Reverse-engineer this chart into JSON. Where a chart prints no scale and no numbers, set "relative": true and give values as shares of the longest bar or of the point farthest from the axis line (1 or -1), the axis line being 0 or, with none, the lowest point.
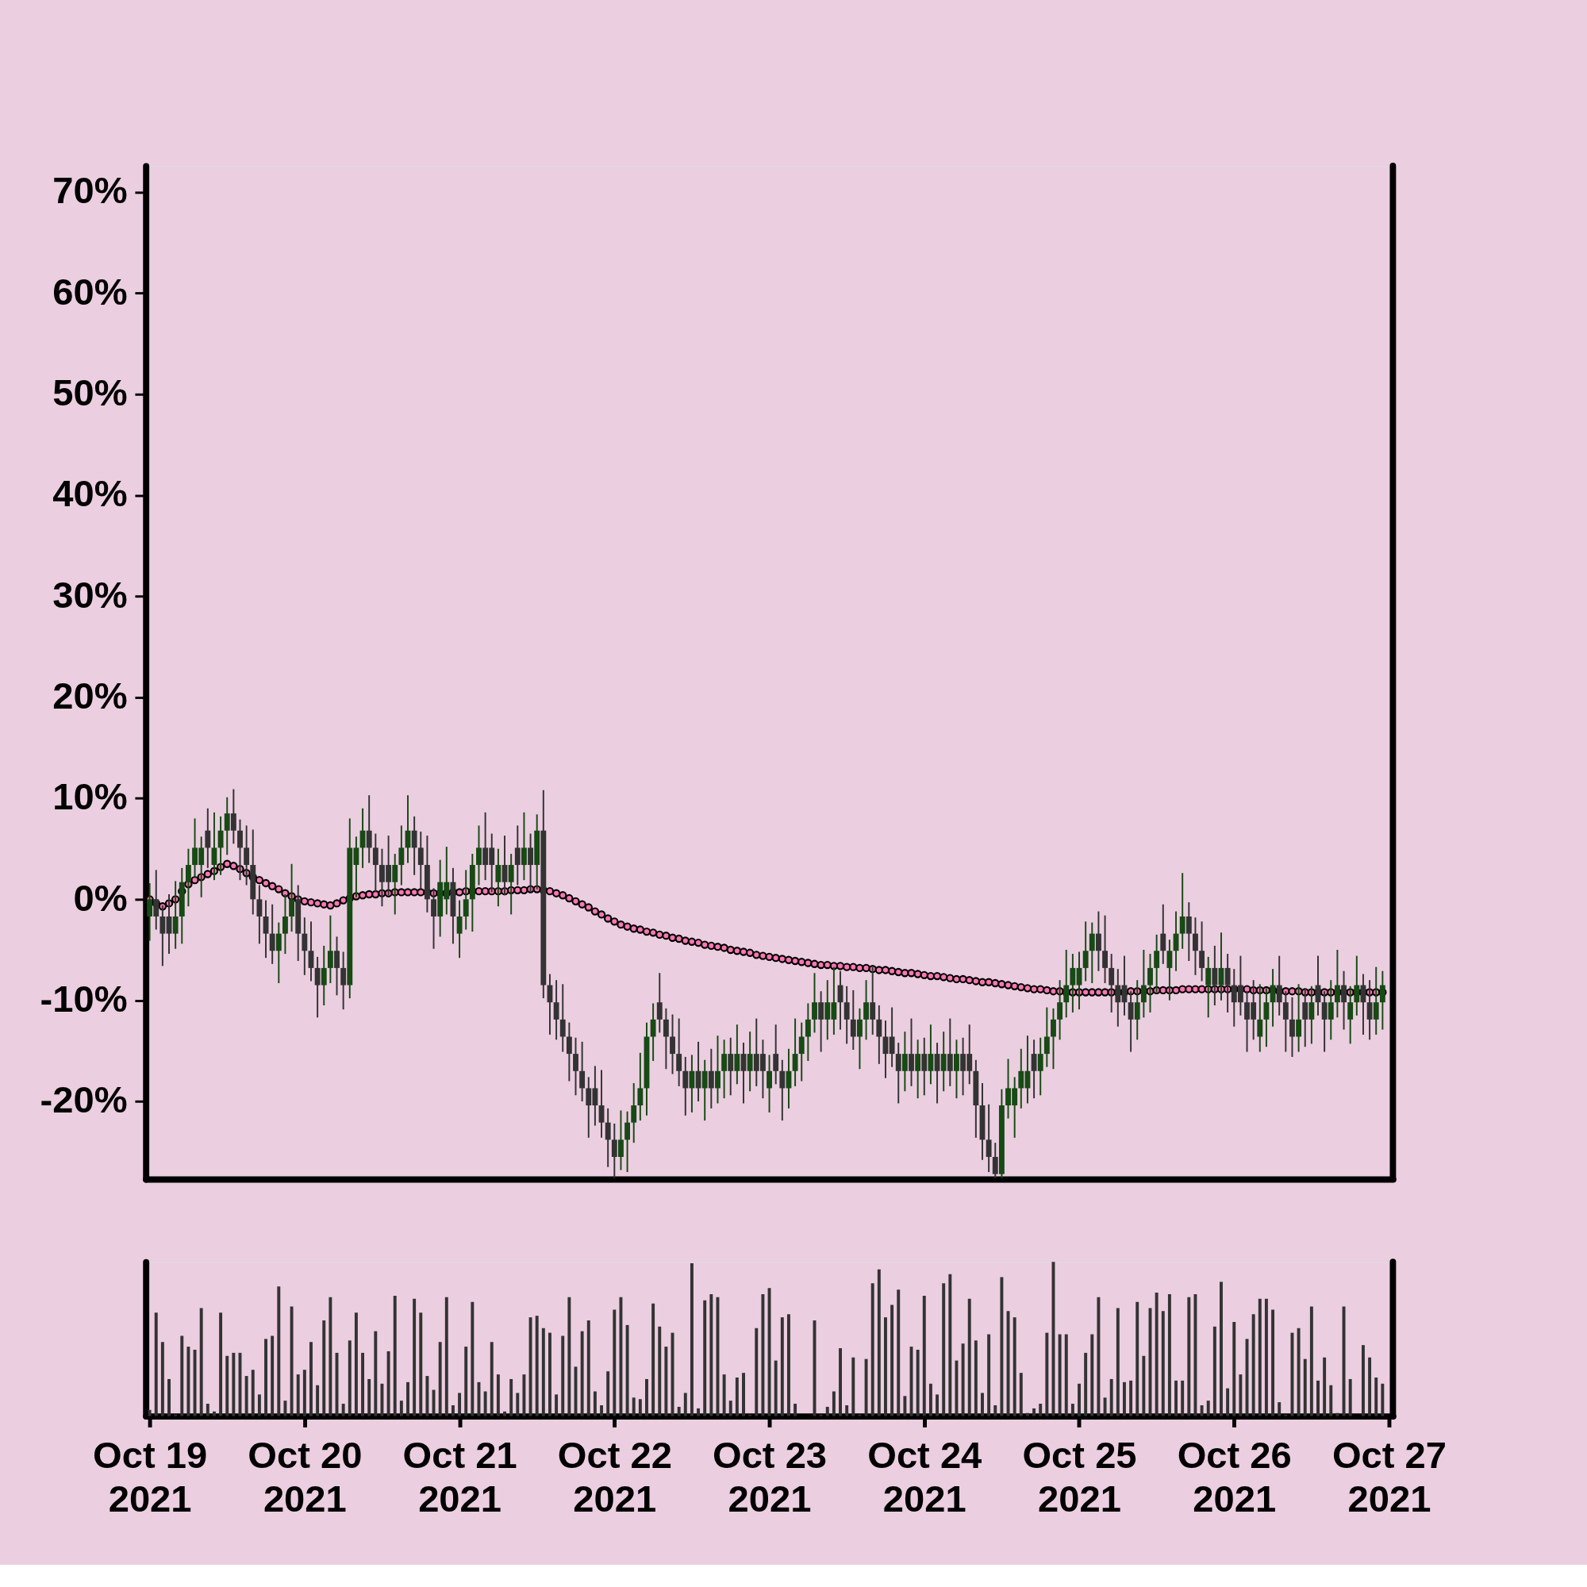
{
  "chart_data": [
    {
      "type": "candlestick",
      "colors": [
        "#174a14",
        "#333333",
        "#333333",
        "#333333",
        "#174a14",
        "#174a14",
        "#174a14",
        "#174a14",
        "#174a14",
        "#333333",
        "#174a14",
        "#174a14",
        "#174a14",
        "#333333",
        "#333333",
        "#333333",
        "#333333",
        "#333333",
        "#333333",
        "#333333",
        "#174a14",
        "#174a14",
        "#174a14",
        "#333333",
        "#333333",
        "#333333",
        "#333333",
        "#174a14",
        "#174a14",
        "#333333",
        "#333333",
        "#174a14",
        "#174a14",
        "#174a14",
        "#333333",
        "#333333",
        "#333333",
        "#333333",
        "#174a14",
        "#174a14",
        "#174a14",
        "#333333",
        "#333333",
        "#333333",
        "#333333",
        "#174a14",
        "#174a14",
        "#333333",
        "#174a14",
        "#174a14",
        "#174a14",
        "#174a14",
        "#333333",
        "#333333",
        "#174a14",
        "#333333",
        "#174a14",
        "#333333",
        "#174a14",
        "#333333",
        "#174a14",
        "#333333",
        "#333333",
        "#333333",
        "#333333",
        "#333333",
        "#333333",
        "#333333",
        "#333333",
        "#333333",
        "#333333",
        "#333333",
        "#333333",
        "#174a14",
        "#174a14",
        "#174a14",
        "#174a14",
        "#174a14",
        "#174a14",
        "#333333",
        "#333333",
        "#333333",
        "#333333",
        "#333333",
        "#174a14",
        "#333333",
        "#174a14",
        "#333333",
        "#174a14",
        "#174a14",
        "#333333",
        "#174a14",
        "#333333",
        "#174a14",
        "#333333",
        "#333333",
        "#174a14",
        "#333333",
        "#333333",
        "#174a14",
        "#174a14",
        "#174a14",
        "#174a14",
        "#174a14",
        "#333333",
        "#174a14",
        "#174a14",
        "#333333",
        "#333333",
        "#333333",
        "#174a14",
        "#174a14",
        "#333333",
        "#333333",
        "#333333",
        "#333333",
        "#333333",
        "#174a14",
        "#333333",
        "#174a14",
        "#333333",
        "#174a14",
        "#333333",
        "#174a14",
        "#333333",
        "#174a14",
        "#333333",
        "#333333",
        "#333333",
        "#333333",
        "#333333",
        "#333333",
        "#174a14",
        "#174a14",
        "#174a14",
        "#174a14",
        "#174a14",
        "#333333",
        "#174a14",
        "#174a14",
        "#174a14",
        "#174a14",
        "#174a14",
        "#174a14",
        "#174a14",
        "#174a14",
        "#174a14",
        "#333333",
        "#333333",
        "#333333",
        "#333333",
        "#333333",
        "#333333",
        "#174a14",
        "#174a14",
        "#174a14",
        "#174a14",
        "#333333",
        "#174a14",
        "#174a14",
        "#174a14",
        "#333333",
        "#333333",
        "#333333",
        "#174a14",
        "#333333",
        "#174a14",
        "#333333",
        "#333333",
        "#333333",
        "#333333",
        "#333333",
        "#174a14",
        "#174a14",
        "#174a14",
        "#333333",
        "#333333",
        "#333333",
        "#174a14",
        "#333333",
        "#174a14",
        "#333333",
        "#333333",
        "#174a14",
        "#174a14",
        "#333333",
        "#174a14",
        "#174a14",
        "#333333",
        "#333333",
        "#174a14",
        "#174a14"
      ],
      "xlim": [
        "2021-10-19T00:00",
        "2021-10-27T00:00"
      ],
      "xticks": [
        {
          "value": "2021-10-19T00:00",
          "label": null
        },
        {
          "value": "2021-10-27T00:00",
          "label": null
        }
      ],
      "ylim": [
        -27.7,
        72.6
      ],
      "yticks": [
        {
          "value": -20,
          "label": "-20%"
        },
        {
          "value": -10,
          "label": "-10%"
        },
        {
          "value": 0,
          "label": "0%"
        },
        {
          "value": 10,
          "label": "10%"
        },
        {
          "value": 20,
          "label": "20%"
        },
        {
          "value": 30,
          "label": "30%"
        },
        {
          "value": 40,
          "label": "40%"
        },
        {
          "value": 50,
          "label": "50%"
        },
        {
          "value": 60,
          "label": "60%"
        },
        {
          "value": 70,
          "label": "70%"
        }
      ],
      "tick_labels": "y",
      "x": [
        "2021-10-19T00:00",
        "2021-10-19T01:00",
        "2021-10-19T02:00",
        "2021-10-19T03:00",
        "2021-10-19T04:00",
        "2021-10-19T05:00",
        "2021-10-19T06:00",
        "2021-10-19T07:00",
        "2021-10-19T08:00",
        "2021-10-19T09:00",
        "2021-10-19T10:00",
        "2021-10-19T11:00",
        "2021-10-19T12:00",
        "2021-10-19T13:00",
        "2021-10-19T14:00",
        "2021-10-19T15:00",
        "2021-10-19T16:00",
        "2021-10-19T17:00",
        "2021-10-19T18:00",
        "2021-10-19T19:00",
        "2021-10-19T20:00",
        "2021-10-19T21:00",
        "2021-10-19T22:00",
        "2021-10-19T23:00",
        "2021-10-20T00:00",
        "2021-10-20T01:00",
        "2021-10-20T02:00",
        "2021-10-20T03:00",
        "2021-10-20T04:00",
        "2021-10-20T05:00",
        "2021-10-20T06:00",
        "2021-10-20T07:00",
        "2021-10-20T08:00",
        "2021-10-20T09:00",
        "2021-10-20T10:00",
        "2021-10-20T11:00",
        "2021-10-20T12:00",
        "2021-10-20T13:00",
        "2021-10-20T14:00",
        "2021-10-20T15:00",
        "2021-10-20T16:00",
        "2021-10-20T17:00",
        "2021-10-20T18:00",
        "2021-10-20T19:00",
        "2021-10-20T20:00",
        "2021-10-20T21:00",
        "2021-10-20T22:00",
        "2021-10-20T23:00",
        "2021-10-21T00:00",
        "2021-10-21T01:00",
        "2021-10-21T02:00",
        "2021-10-21T03:00",
        "2021-10-21T04:00",
        "2021-10-21T05:00",
        "2021-10-21T06:00",
        "2021-10-21T07:00",
        "2021-10-21T08:00",
        "2021-10-21T09:00",
        "2021-10-21T10:00",
        "2021-10-21T11:00",
        "2021-10-21T12:00",
        "2021-10-21T13:00",
        "2021-10-21T14:00",
        "2021-10-21T15:00",
        "2021-10-21T16:00",
        "2021-10-21T17:00",
        "2021-10-21T18:00",
        "2021-10-21T19:00",
        "2021-10-21T20:00",
        "2021-10-21T21:00",
        "2021-10-21T22:00",
        "2021-10-21T23:00",
        "2021-10-22T00:00",
        "2021-10-22T01:00",
        "2021-10-22T02:00",
        "2021-10-22T03:00",
        "2021-10-22T04:00",
        "2021-10-22T05:00",
        "2021-10-22T06:00",
        "2021-10-22T07:00",
        "2021-10-22T08:00",
        "2021-10-22T09:00",
        "2021-10-22T10:00",
        "2021-10-22T11:00",
        "2021-10-22T12:00",
        "2021-10-22T13:00",
        "2021-10-22T14:00",
        "2021-10-22T15:00",
        "2021-10-22T16:00",
        "2021-10-22T17:00",
        "2021-10-22T18:00",
        "2021-10-22T19:00",
        "2021-10-22T20:00",
        "2021-10-22T21:00",
        "2021-10-22T22:00",
        "2021-10-22T23:00",
        "2021-10-23T00:00",
        "2021-10-23T01:00",
        "2021-10-23T02:00",
        "2021-10-23T03:00",
        "2021-10-23T04:00",
        "2021-10-23T05:00",
        "2021-10-23T06:00",
        "2021-10-23T07:00",
        "2021-10-23T08:00",
        "2021-10-23T09:00",
        "2021-10-23T10:00",
        "2021-10-23T11:00",
        "2021-10-23T12:00",
        "2021-10-23T13:00",
        "2021-10-23T14:00",
        "2021-10-23T15:00",
        "2021-10-23T16:00",
        "2021-10-23T17:00",
        "2021-10-23T18:00",
        "2021-10-23T19:00",
        "2021-10-23T20:00",
        "2021-10-23T21:00",
        "2021-10-23T22:00",
        "2021-10-23T23:00",
        "2021-10-24T00:00",
        "2021-10-24T01:00",
        "2021-10-24T02:00",
        "2021-10-24T03:00",
        "2021-10-24T04:00",
        "2021-10-24T05:00",
        "2021-10-24T06:00",
        "2021-10-24T07:00",
        "2021-10-24T08:00",
        "2021-10-24T09:00",
        "2021-10-24T10:00",
        "2021-10-24T11:00",
        "2021-10-24T12:00",
        "2021-10-24T13:00",
        "2021-10-24T14:00",
        "2021-10-24T15:00",
        "2021-10-24T16:00",
        "2021-10-24T17:00",
        "2021-10-24T18:00",
        "2021-10-24T19:00",
        "2021-10-24T20:00",
        "2021-10-24T21:00",
        "2021-10-24T22:00",
        "2021-10-24T23:00",
        "2021-10-25T00:00",
        "2021-10-25T01:00",
        "2021-10-25T02:00",
        "2021-10-25T03:00",
        "2021-10-25T04:00",
        "2021-10-25T05:00",
        "2021-10-25T06:00",
        "2021-10-25T07:00",
        "2021-10-25T08:00",
        "2021-10-25T09:00",
        "2021-10-25T10:00",
        "2021-10-25T11:00",
        "2021-10-25T12:00",
        "2021-10-25T13:00",
        "2021-10-25T14:00",
        "2021-10-25T15:00",
        "2021-10-25T16:00",
        "2021-10-25T17:00",
        "2021-10-25T18:00",
        "2021-10-25T19:00",
        "2021-10-25T20:00",
        "2021-10-25T21:00",
        "2021-10-25T22:00",
        "2021-10-25T23:00",
        "2021-10-26T00:00",
        "2021-10-26T01:00",
        "2021-10-26T02:00",
        "2021-10-26T03:00",
        "2021-10-26T04:00",
        "2021-10-26T05:00",
        "2021-10-26T06:00",
        "2021-10-26T07:00",
        "2021-10-26T08:00",
        "2021-10-26T09:00",
        "2021-10-26T10:00",
        "2021-10-26T11:00",
        "2021-10-26T12:00",
        "2021-10-26T13:00",
        "2021-10-26T14:00",
        "2021-10-26T15:00",
        "2021-10-26T16:00",
        "2021-10-26T17:00",
        "2021-10-26T18:00",
        "2021-10-26T19:00",
        "2021-10-26T20:00",
        "2021-10-26T21:00",
        "2021-10-26T22:00",
        "2021-10-26T23:00"
      ],
      "ohlc": [
        [
          -1.7,
          1.6,
          -4.1,
          0
        ],
        [
          0,
          2.9,
          -3.0,
          -1.7
        ],
        [
          -1.7,
          -0.6,
          -6.6,
          -3.4
        ],
        [
          -1.7,
          0.5,
          -5.4,
          -3.4
        ],
        [
          -3.4,
          1.8,
          -4.9,
          -1.7
        ],
        [
          -1.7,
          3.1,
          -4.4,
          1.7
        ],
        [
          1.7,
          5.0,
          -0.7,
          3.4
        ],
        [
          3.4,
          8.0,
          2.1,
          5.1
        ],
        [
          3.4,
          6.2,
          0.2,
          5.1
        ],
        [
          6.8,
          9.0,
          3.1,
          5.1
        ],
        [
          3.4,
          8.6,
          1.9,
          5.1
        ],
        [
          5.1,
          8.2,
          2.4,
          6.8
        ],
        [
          6.8,
          10.1,
          4.4,
          8.5
        ],
        [
          8.5,
          10.9,
          5.5,
          6.8
        ],
        [
          6.8,
          7.9,
          1.9,
          5.1
        ],
        [
          5.1,
          7.3,
          1.4,
          3.4
        ],
        [
          3.4,
          6.9,
          -1.5,
          0
        ],
        [
          0,
          1.4,
          -4.4,
          -1.7
        ],
        [
          -1.7,
          -0.1,
          -5.8,
          -3.4
        ],
        [
          -3.4,
          -0.5,
          -6.4,
          -5.1
        ],
        [
          -5.1,
          -2.3,
          -8.3,
          -3.4
        ],
        [
          -3.4,
          0.5,
          -5.4,
          -1.7
        ],
        [
          -1.7,
          3.5,
          -3.2,
          0
        ],
        [
          0,
          1.4,
          -6.1,
          -3.4
        ],
        [
          -3.4,
          -1.8,
          -7.5,
          -5.1
        ],
        [
          -5.1,
          -2.2,
          -8.1,
          -6.8
        ],
        [
          -6.8,
          -5.7,
          -11.7,
          -8.5
        ],
        [
          -8.5,
          -4.6,
          -10.5,
          -6.8
        ],
        [
          -6.8,
          -1.6,
          -8.3,
          -5.1
        ],
        [
          -5.1,
          -3.7,
          -9.5,
          -6.8
        ],
        [
          -6.8,
          -5.2,
          -10.9,
          -8.5
        ],
        [
          -8.5,
          8.0,
          -9.8,
          5.1
        ],
        [
          3.4,
          6.2,
          0.2,
          5.1
        ],
        [
          5.1,
          9.0,
          3.1,
          6.8
        ],
        [
          6.8,
          10.3,
          3.6,
          5.1
        ],
        [
          5.1,
          6.5,
          0.7,
          3.4
        ],
        [
          3.4,
          5.0,
          -0.7,
          1.7
        ],
        [
          3.4,
          6.3,
          0.4,
          1.7
        ],
        [
          1.7,
          4.5,
          -1.5,
          3.4
        ],
        [
          3.4,
          7.3,
          1.4,
          5.1
        ],
        [
          5.1,
          10.3,
          3.6,
          6.8
        ],
        [
          6.8,
          8.2,
          2.4,
          5.1
        ],
        [
          5.1,
          6.7,
          1.0,
          3.4
        ],
        [
          3.4,
          6.3,
          -1.3,
          0
        ],
        [
          0,
          1.1,
          -4.9,
          -1.7
        ],
        [
          -1.7,
          3.9,
          -3.7,
          1.7
        ],
        [
          0,
          5.2,
          -1.5,
          1.7
        ],
        [
          1.7,
          3.1,
          -4.4,
          -1.7
        ],
        [
          -3.4,
          -0.1,
          -5.8,
          -1.7
        ],
        [
          -1.7,
          2.9,
          -3.0,
          0
        ],
        [
          0,
          4.5,
          -3.2,
          3.4
        ],
        [
          3.4,
          7.3,
          1.4,
          5.1
        ],
        [
          5.1,
          8.6,
          1.9,
          3.4
        ],
        [
          5.1,
          6.5,
          0.7,
          3.4
        ],
        [
          1.7,
          5.0,
          -0.7,
          3.4
        ],
        [
          3.4,
          6.3,
          0.4,
          1.7
        ],
        [
          1.7,
          4.5,
          -1.5,
          3.4
        ],
        [
          5.1,
          7.3,
          1.4,
          3.4
        ],
        [
          3.4,
          8.6,
          1.9,
          5.1
        ],
        [
          5.1,
          6.5,
          0.7,
          3.4
        ],
        [
          3.4,
          8.4,
          1.0,
          6.8
        ],
        [
          6.8,
          10.8,
          -9.8,
          -8.5
        ],
        [
          -8.5,
          -7.4,
          -13.4,
          -10.2
        ],
        [
          -10.2,
          -8.0,
          -13.9,
          -11.9
        ],
        [
          -11.9,
          -8.4,
          -15.1,
          -13.6
        ],
        [
          -13.6,
          -12.2,
          -18.0,
          -15.3
        ],
        [
          -15.3,
          -13.7,
          -19.4,
          -17
        ],
        [
          -17,
          -14.1,
          -20.0,
          -18.7
        ],
        [
          -18.7,
          -17.6,
          -23.6,
          -20.4
        ],
        [
          -18.7,
          -16.5,
          -22.4,
          -20.4
        ],
        [
          -20.4,
          -16.9,
          -23.6,
          -22.1
        ],
        [
          -22.1,
          -20.7,
          -26.5,
          -23.8
        ],
        [
          -23.8,
          -22.2,
          -27.6,
          -25.5
        ],
        [
          -25.5,
          -20.9,
          -26.8,
          -23.8
        ],
        [
          -23.8,
          -21.0,
          -27.0,
          -22.1
        ],
        [
          -22.1,
          -18.2,
          -24.1,
          -20.4
        ],
        [
          -20.4,
          -15.2,
          -21.9,
          -18.7
        ],
        [
          -18.7,
          -12.2,
          -21.4,
          -13.6
        ],
        [
          -13.6,
          -10.3,
          -16.0,
          -11.9
        ],
        [
          -10.2,
          -7.3,
          -13.2,
          -11.9
        ],
        [
          -11.9,
          -10.8,
          -16.8,
          -13.6
        ],
        [
          -13.6,
          -11.4,
          -17.3,
          -15.3
        ],
        [
          -15.3,
          -11.8,
          -18.5,
          -17
        ],
        [
          -17,
          -15.6,
          -21.4,
          -18.7
        ],
        [
          -18.7,
          -15.4,
          -21.1,
          -17
        ],
        [
          -17,
          -14.1,
          -20.0,
          -18.7
        ],
        [
          -18.7,
          -15.9,
          -21.9,
          -17
        ],
        [
          -17,
          -14.8,
          -20.7,
          -18.7
        ],
        [
          -18.7,
          -13.5,
          -20.2,
          -17
        ],
        [
          -17,
          -13.9,
          -19.7,
          -15.3
        ],
        [
          -15.3,
          -13.7,
          -19.4,
          -17
        ],
        [
          -17,
          -12.4,
          -18.3,
          -15.3
        ],
        [
          -15.3,
          -14.2,
          -20.2,
          -17
        ],
        [
          -17,
          -13.1,
          -19.0,
          -15.3
        ],
        [
          -15.3,
          -11.8,
          -18.5,
          -17
        ],
        [
          -15.3,
          -13.9,
          -19.7,
          -17
        ],
        [
          -18.7,
          -15.4,
          -21.1,
          -17
        ],
        [
          -15.3,
          -12.4,
          -18.3,
          -17
        ],
        [
          -17,
          -15.9,
          -21.9,
          -18.7
        ],
        [
          -18.7,
          -14.8,
          -20.7,
          -17
        ],
        [
          -17,
          -11.8,
          -18.5,
          -15.3
        ],
        [
          -15.3,
          -12.2,
          -18.0,
          -13.6
        ],
        [
          -13.6,
          -10.3,
          -16.0,
          -11.9
        ],
        [
          -11.9,
          -7.3,
          -13.2,
          -10.2
        ],
        [
          -10.2,
          -9.1,
          -15.1,
          -11.9
        ],
        [
          -11.9,
          -8.0,
          -13.9,
          -10.2
        ],
        [
          -11.9,
          -6.7,
          -13.4,
          -10.2
        ],
        [
          -8.5,
          -7.1,
          -12.9,
          -10.2
        ],
        [
          -10.2,
          -8.6,
          -14.3,
          -11.9
        ],
        [
          -11.9,
          -9.0,
          -14.9,
          -13.6
        ],
        [
          -13.6,
          -10.8,
          -16.8,
          -11.9
        ],
        [
          -11.9,
          -8.0,
          -13.9,
          -10.2
        ],
        [
          -10.2,
          -6.7,
          -13.4,
          -11.9
        ],
        [
          -11.9,
          -10.5,
          -16.3,
          -13.6
        ],
        [
          -13.6,
          -12.0,
          -17.7,
          -15.3
        ],
        [
          -13.6,
          -10.7,
          -16.6,
          -15.3
        ],
        [
          -15.3,
          -14.2,
          -20.2,
          -17
        ],
        [
          -17,
          -13.1,
          -19.0,
          -15.3
        ],
        [
          -15.3,
          -11.8,
          -18.5,
          -17
        ],
        [
          -17,
          -13.9,
          -19.7,
          -15.3
        ],
        [
          -15.3,
          -13.7,
          -19.4,
          -17
        ],
        [
          -17,
          -12.4,
          -18.3,
          -15.3
        ],
        [
          -15.3,
          -14.2,
          -20.2,
          -17
        ],
        [
          -17,
          -13.1,
          -19.0,
          -15.3
        ],
        [
          -15.3,
          -11.8,
          -18.5,
          -17
        ],
        [
          -17,
          -13.9,
          -19.7,
          -15.3
        ],
        [
          -15.3,
          -13.7,
          -19.4,
          -17
        ],
        [
          -15.3,
          -12.4,
          -18.3,
          -17
        ],
        [
          -17,
          -15.9,
          -23.6,
          -20.4
        ],
        [
          -20.4,
          -18.2,
          -25.8,
          -23.8
        ],
        [
          -23.8,
          -20.3,
          -27.0,
          -25.5
        ],
        [
          -25.5,
          -24.1,
          -27.6,
          -27.2
        ],
        [
          -27.2,
          -18.8,
          -27.6,
          -20.4
        ],
        [
          -20.4,
          -15.8,
          -21.7,
          -18.7
        ],
        [
          -20.4,
          -17.6,
          -23.6,
          -18.7
        ],
        [
          -18.7,
          -14.8,
          -20.7,
          -17
        ],
        [
          -18.7,
          -13.5,
          -20.2,
          -17
        ],
        [
          -15.3,
          -13.9,
          -19.7,
          -17
        ],
        [
          -17,
          -13.7,
          -19.4,
          -15.3
        ],
        [
          -15.3,
          -10.7,
          -16.6,
          -13.6
        ],
        [
          -13.6,
          -10.8,
          -16.8,
          -11.9
        ],
        [
          -11.9,
          -8.0,
          -13.9,
          -10.2
        ],
        [
          -10.2,
          -5.0,
          -11.7,
          -8.5
        ],
        [
          -8.5,
          -5.4,
          -11.2,
          -6.8
        ],
        [
          -8.5,
          -5.2,
          -10.9,
          -6.8
        ],
        [
          -6.8,
          -2.2,
          -8.1,
          -5.1
        ],
        [
          -5.1,
          -2.3,
          -8.3,
          -3.4
        ],
        [
          -3.4,
          -1.2,
          -7.1,
          -5.1
        ],
        [
          -5.1,
          -1.6,
          -8.3,
          -6.8
        ],
        [
          -6.8,
          -5.4,
          -11.2,
          -8.5
        ],
        [
          -8.5,
          -6.9,
          -12.6,
          -10.2
        ],
        [
          -8.5,
          -5.6,
          -11.5,
          -10.2
        ],
        [
          -10.2,
          -9.1,
          -15.1,
          -11.9
        ],
        [
          -11.9,
          -8.0,
          -13.9,
          -10.2
        ],
        [
          -10.2,
          -5.0,
          -11.7,
          -8.5
        ],
        [
          -8.5,
          -5.4,
          -11.2,
          -6.8
        ],
        [
          -6.8,
          -3.5,
          -9.2,
          -5.1
        ],
        [
          -3.4,
          -0.5,
          -6.4,
          -5.1
        ],
        [
          -6.8,
          -4.0,
          -10.0,
          -5.1
        ],
        [
          -5.1,
          -1.2,
          -7.1,
          -3.4
        ],
        [
          -3.4,
          2.6,
          -4.9,
          -1.7
        ],
        [
          -1.7,
          -0.3,
          -6.1,
          -3.4
        ],
        [
          -3.4,
          -1.8,
          -7.5,
          -5.1
        ],
        [
          -5.1,
          -2.2,
          -8.1,
          -6.8
        ],
        [
          -8.5,
          -5.7,
          -11.7,
          -6.8
        ],
        [
          -6.8,
          -4.6,
          -10.5,
          -8.5
        ],
        [
          -8.5,
          -3.3,
          -10.0,
          -6.8
        ],
        [
          -6.8,
          -5.4,
          -11.2,
          -8.5
        ],
        [
          -8.5,
          -6.9,
          -12.6,
          -10.2
        ],
        [
          -8.5,
          -5.6,
          -11.5,
          -10.2
        ],
        [
          -10.2,
          -9.1,
          -15.1,
          -11.9
        ],
        [
          -10.2,
          -8.0,
          -13.9,
          -11.9
        ],
        [
          -13.6,
          -8.4,
          -15.1,
          -11.9
        ],
        [
          -11.9,
          -8.8,
          -14.6,
          -10.2
        ],
        [
          -10.2,
          -6.9,
          -12.6,
          -8.5
        ],
        [
          -8.5,
          -5.6,
          -11.5,
          -10.2
        ],
        [
          -10.2,
          -9.1,
          -15.1,
          -11.9
        ],
        [
          -11.9,
          -9.7,
          -15.6,
          -13.6
        ],
        [
          -13.6,
          -8.4,
          -15.1,
          -11.9
        ],
        [
          -10.2,
          -8.8,
          -14.6,
          -11.9
        ],
        [
          -11.9,
          -8.6,
          -14.3,
          -10.2
        ],
        [
          -8.5,
          -5.6,
          -11.5,
          -10.2
        ],
        [
          -10.2,
          -9.1,
          -15.1,
          -11.9
        ],
        [
          -11.9,
          -8.0,
          -13.9,
          -10.2
        ],
        [
          -10.2,
          -5.0,
          -11.7,
          -8.5
        ],
        [
          -8.5,
          -7.1,
          -12.9,
          -10.2
        ],
        [
          -11.9,
          -8.6,
          -14.3,
          -10.2
        ],
        [
          -10.2,
          -5.6,
          -11.5,
          -8.5
        ],
        [
          -8.5,
          -7.4,
          -13.4,
          -10.2
        ],
        [
          -10.2,
          -8.0,
          -13.9,
          -11.9
        ],
        [
          -11.9,
          -6.7,
          -13.4,
          -10.2
        ],
        [
          -10.2,
          -7.1,
          -12.9,
          -8.5
        ]
      ],
      "series": [
        {
          "type": "scatter",
          "marker": "circle",
          "color": "#ff77b4",
          "values": [
            0,
            -0.4,
            -0.7,
            -0.4,
            0,
            0.8,
            1.5,
            1.9,
            2.2,
            2.5,
            2.8,
            3.2,
            3.5,
            3.3,
            3.0,
            2.6,
            2.2,
            1.9,
            1.6,
            1.3,
            1.0,
            0.6,
            0.3,
            0.0,
            -0.2,
            -0.3,
            -0.4,
            -0.5,
            -0.6,
            -0.4,
            -0.1,
            0.1,
            0.3,
            0.4,
            0.5,
            0.5,
            0.6,
            0.6,
            0.7,
            0.7,
            0.7,
            0.7,
            0.7,
            0.7,
            0.6,
            0.6,
            0.6,
            0.7,
            0.7,
            0.8,
            0.8,
            0.8,
            0.8,
            0.8,
            0.8,
            0.8,
            0.9,
            0.9,
            0.9,
            1.0,
            1.0,
            0.9,
            0.8,
            0.6,
            0.4,
            0.1,
            -0.2,
            -0.5,
            -0.8,
            -1.2,
            -1.5,
            -1.9,
            -2.2,
            -2.5,
            -2.7,
            -2.9,
            -3.0,
            -3.2,
            -3.3,
            -3.5,
            -3.6,
            -3.8,
            -3.9,
            -4.1,
            -4.2,
            -4.3,
            -4.5,
            -4.6,
            -4.7,
            -4.8,
            -5.0,
            -5.1,
            -5.2,
            -5.3,
            -5.5,
            -5.6,
            -5.7,
            -5.8,
            -5.9,
            -6.0,
            -6.1,
            -6.2,
            -6.3,
            -6.4,
            -6.5,
            -6.5,
            -6.6,
            -6.6,
            -6.7,
            -6.7,
            -6.8,
            -6.8,
            -6.9,
            -7.0,
            -7.0,
            -7.1,
            -7.2,
            -7.3,
            -7.3,
            -7.4,
            -7.5,
            -7.6,
            -7.6,
            -7.7,
            -7.8,
            -7.9,
            -7.9,
            -8.0,
            -8.1,
            -8.2,
            -8.2,
            -8.3,
            -8.4,
            -8.5,
            -8.6,
            -8.7,
            -8.8,
            -8.9,
            -8.9,
            -9.0,
            -9.1,
            -9.1,
            -9.2,
            -9.2,
            -9.2,
            -9.2,
            -9.2,
            -9.2,
            -9.2,
            -9.2,
            -9.2,
            -9.2,
            -9.1,
            -9.1,
            -9.1,
            -9.1,
            -9.0,
            -9.0,
            -9.0,
            -9.0,
            -8.9,
            -8.9,
            -8.9,
            -8.9,
            -8.9,
            -8.9,
            -8.9,
            -8.9,
            -8.9,
            -8.9,
            -8.9,
            -9.0,
            -9.0,
            -9.0,
            -9.0,
            -9.1,
            -9.1,
            -9.1,
            -9.1,
            -9.2,
            -9.2,
            -9.2,
            -9.2,
            -9.2,
            -9.2,
            -9.2,
            -9.2,
            -9.2,
            -9.2,
            -9.2,
            -9.2,
            -9.2
          ]
        }
      ]
    },
    {
      "type": "bar",
      "relative": true,
      "color": "#333333",
      "tick_labels": "x",
      "xlim": [
        "2021-10-19T00:00",
        "2021-10-27T00:00"
      ],
      "xticks": [
        {
          "value": "2021-10-19T00:00",
          "label": "Oct 19\n2021"
        },
        {
          "value": "2021-10-20T00:00",
          "label": "Oct 20\n2021"
        },
        {
          "value": "2021-10-21T00:00",
          "label": "Oct 21\n2021"
        },
        {
          "value": "2021-10-22T00:00",
          "label": "Oct 22\n2021"
        },
        {
          "value": "2021-10-23T00:00",
          "label": "Oct 23\n2021"
        },
        {
          "value": "2021-10-24T00:00",
          "label": "Oct 24\n2021"
        },
        {
          "value": "2021-10-25T00:00",
          "label": "Oct 25\n2021"
        },
        {
          "value": "2021-10-26T00:00",
          "label": "Oct 26\n2021"
        },
        {
          "value": "2021-10-27T00:00",
          "label": "Oct 27\n2021"
        }
      ],
      "x": [
        "2021-10-19T00:00",
        "2021-10-19T01:00",
        "2021-10-19T02:00",
        "2021-10-19T03:00",
        "2021-10-19T04:00",
        "2021-10-19T05:00",
        "2021-10-19T06:00",
        "2021-10-19T07:00",
        "2021-10-19T08:00",
        "2021-10-19T09:00",
        "2021-10-19T10:00",
        "2021-10-19T11:00",
        "2021-10-19T12:00",
        "2021-10-19T13:00",
        "2021-10-19T14:00",
        "2021-10-19T15:00",
        "2021-10-19T16:00",
        "2021-10-19T17:00",
        "2021-10-19T18:00",
        "2021-10-19T19:00",
        "2021-10-19T20:00",
        "2021-10-19T21:00",
        "2021-10-19T22:00",
        "2021-10-19T23:00",
        "2021-10-20T00:00",
        "2021-10-20T01:00",
        "2021-10-20T02:00",
        "2021-10-20T03:00",
        "2021-10-20T04:00",
        "2021-10-20T05:00",
        "2021-10-20T06:00",
        "2021-10-20T07:00",
        "2021-10-20T08:00",
        "2021-10-20T09:00",
        "2021-10-20T10:00",
        "2021-10-20T11:00",
        "2021-10-20T12:00",
        "2021-10-20T13:00",
        "2021-10-20T14:00",
        "2021-10-20T15:00",
        "2021-10-20T16:00",
        "2021-10-20T17:00",
        "2021-10-20T18:00",
        "2021-10-20T19:00",
        "2021-10-20T20:00",
        "2021-10-20T21:00",
        "2021-10-20T22:00",
        "2021-10-20T23:00",
        "2021-10-21T00:00",
        "2021-10-21T01:00",
        "2021-10-21T02:00",
        "2021-10-21T03:00",
        "2021-10-21T04:00",
        "2021-10-21T05:00",
        "2021-10-21T06:00",
        "2021-10-21T07:00",
        "2021-10-21T08:00",
        "2021-10-21T09:00",
        "2021-10-21T10:00",
        "2021-10-21T11:00",
        "2021-10-21T12:00",
        "2021-10-21T13:00",
        "2021-10-21T14:00",
        "2021-10-21T15:00",
        "2021-10-21T16:00",
        "2021-10-21T17:00",
        "2021-10-21T18:00",
        "2021-10-21T19:00",
        "2021-10-21T20:00",
        "2021-10-21T21:00",
        "2021-10-21T22:00",
        "2021-10-21T23:00",
        "2021-10-22T00:00",
        "2021-10-22T01:00",
        "2021-10-22T02:00",
        "2021-10-22T03:00",
        "2021-10-22T04:00",
        "2021-10-22T05:00",
        "2021-10-22T06:00",
        "2021-10-22T07:00",
        "2021-10-22T08:00",
        "2021-10-22T09:00",
        "2021-10-22T10:00",
        "2021-10-22T11:00",
        "2021-10-22T12:00",
        "2021-10-22T13:00",
        "2021-10-22T14:00",
        "2021-10-22T15:00",
        "2021-10-22T16:00",
        "2021-10-22T17:00",
        "2021-10-22T18:00",
        "2021-10-22T19:00",
        "2021-10-22T20:00",
        "2021-10-22T21:00",
        "2021-10-22T22:00",
        "2021-10-22T23:00",
        "2021-10-23T00:00",
        "2021-10-23T01:00",
        "2021-10-23T02:00",
        "2021-10-23T03:00",
        "2021-10-23T04:00",
        "2021-10-23T05:00",
        "2021-10-23T06:00",
        "2021-10-23T07:00",
        "2021-10-23T08:00",
        "2021-10-23T09:00",
        "2021-10-23T10:00",
        "2021-10-23T11:00",
        "2021-10-23T12:00",
        "2021-10-23T13:00",
        "2021-10-23T14:00",
        "2021-10-23T15:00",
        "2021-10-23T16:00",
        "2021-10-23T17:00",
        "2021-10-23T18:00",
        "2021-10-23T19:00",
        "2021-10-23T20:00",
        "2021-10-23T21:00",
        "2021-10-23T22:00",
        "2021-10-23T23:00",
        "2021-10-24T00:00",
        "2021-10-24T01:00",
        "2021-10-24T02:00",
        "2021-10-24T03:00",
        "2021-10-24T04:00",
        "2021-10-24T05:00",
        "2021-10-24T06:00",
        "2021-10-24T07:00",
        "2021-10-24T08:00",
        "2021-10-24T09:00",
        "2021-10-24T10:00",
        "2021-10-24T11:00",
        "2021-10-24T12:00",
        "2021-10-24T13:00",
        "2021-10-24T14:00",
        "2021-10-24T15:00",
        "2021-10-24T16:00",
        "2021-10-24T17:00",
        "2021-10-24T18:00",
        "2021-10-24T19:00",
        "2021-10-24T20:00",
        "2021-10-24T21:00",
        "2021-10-24T22:00",
        "2021-10-24T23:00",
        "2021-10-25T00:00",
        "2021-10-25T01:00",
        "2021-10-25T02:00",
        "2021-10-25T03:00",
        "2021-10-25T04:00",
        "2021-10-25T05:00",
        "2021-10-25T06:00",
        "2021-10-25T07:00",
        "2021-10-25T08:00",
        "2021-10-25T09:00",
        "2021-10-25T10:00",
        "2021-10-25T11:00",
        "2021-10-25T12:00",
        "2021-10-25T13:00",
        "2021-10-25T14:00",
        "2021-10-25T15:00",
        "2021-10-25T16:00",
        "2021-10-25T17:00",
        "2021-10-25T18:00",
        "2021-10-25T19:00",
        "2021-10-25T20:00",
        "2021-10-25T21:00",
        "2021-10-25T22:00",
        "2021-10-25T23:00",
        "2021-10-26T00:00",
        "2021-10-26T01:00",
        "2021-10-26T02:00",
        "2021-10-26T03:00",
        "2021-10-26T04:00",
        "2021-10-26T05:00",
        "2021-10-26T06:00",
        "2021-10-26T07:00",
        "2021-10-26T08:00",
        "2021-10-26T09:00",
        "2021-10-26T10:00",
        "2021-10-26T11:00",
        "2021-10-26T12:00",
        "2021-10-26T13:00",
        "2021-10-26T14:00",
        "2021-10-26T15:00",
        "2021-10-26T16:00",
        "2021-10-26T17:00",
        "2021-10-26T18:00",
        "2021-10-26T19:00",
        "2021-10-26T20:00",
        "2021-10-26T21:00",
        "2021-10-26T22:00",
        "2021-10-26T23:00"
      ],
      "values": [
        0.04,
        0.67,
        0.48,
        0.24,
        0.01,
        0.52,
        0.45,
        0.43,
        0.7,
        0.08,
        0.03,
        0.67,
        0.39,
        0.41,
        0.41,
        0.26,
        0.3,
        0.14,
        0.5,
        0.52,
        0.84,
        0.1,
        0.71,
        0.27,
        0.3,
        0.48,
        0.2,
        0.62,
        0.77,
        0.41,
        0.08,
        0.49,
        0.67,
        0.41,
        0.24,
        0.55,
        0.21,
        0.42,
        0.78,
        0.1,
        0.22,
        0.76,
        0.67,
        0.26,
        0.17,
        0.48,
        0.77,
        0.07,
        0.15,
        0.45,
        0.74,
        0.22,
        0.16,
        0.48,
        0.27,
        0.03,
        0.24,
        0.15,
        0.27,
        0.64,
        0.65,
        0.57,
        0.54,
        0.14,
        0.52,
        0.77,
        0.32,
        0.55,
        0.62,
        0.16,
        0.07,
        0.29,
        0.69,
        0.77,
        0.59,
        0.12,
        0.11,
        0.24,
        0.73,
        0.58,
        0.45,
        0.54,
        0.06,
        0.15,
        0.99,
        0.05,
        0.75,
        0.79,
        0.77,
        0.27,
        0.1,
        0.25,
        0.28,
        0.01,
        0.57,
        0.79,
        0.83,
        0.36,
        0.64,
        0.66,
        0.08,
        0.0,
        0.0,
        0.62,
        0.01,
        0.06,
        0.16,
        0.44,
        0.07,
        0.38,
        0.01,
        0.37,
        0.86,
        0.95,
        0.64,
        0.72,
        0.82,
        0.13,
        0.45,
        0.43,
        0.78,
        0.21,
        0.14,
        0.86,
        0.92,
        0.36,
        0.47,
        0.76,
        0.49,
        0.15,
        0.53,
        0.07,
        0.9,
        0.68,
        0.64,
        0.28,
        0.02,
        0.05,
        0.08,
        0.54,
        1.0,
        0.53,
        0.53,
        0.08,
        0.21,
        0.41,
        0.53,
        0.77,
        0.12,
        0.24,
        0.7,
        0.22,
        0.23,
        0.74,
        0.39,
        0.7,
        0.8,
        0.68,
        0.79,
        0.23,
        0.23,
        0.77,
        0.79,
        0.07,
        0.1,
        0.58,
        0.87,
        0.18,
        0.61,
        0.27,
        0.5,
        0.66,
        0.76,
        0.76,
        0.69,
        0.09,
        0.01,
        0.54,
        0.57,
        0.37,
        0.71,
        0.23,
        0.38,
        0.2,
        0.02,
        0.71,
        0.24,
        0.0,
        0.46,
        0.38,
        0.25,
        0.21
      ]
    }
  ]
}
